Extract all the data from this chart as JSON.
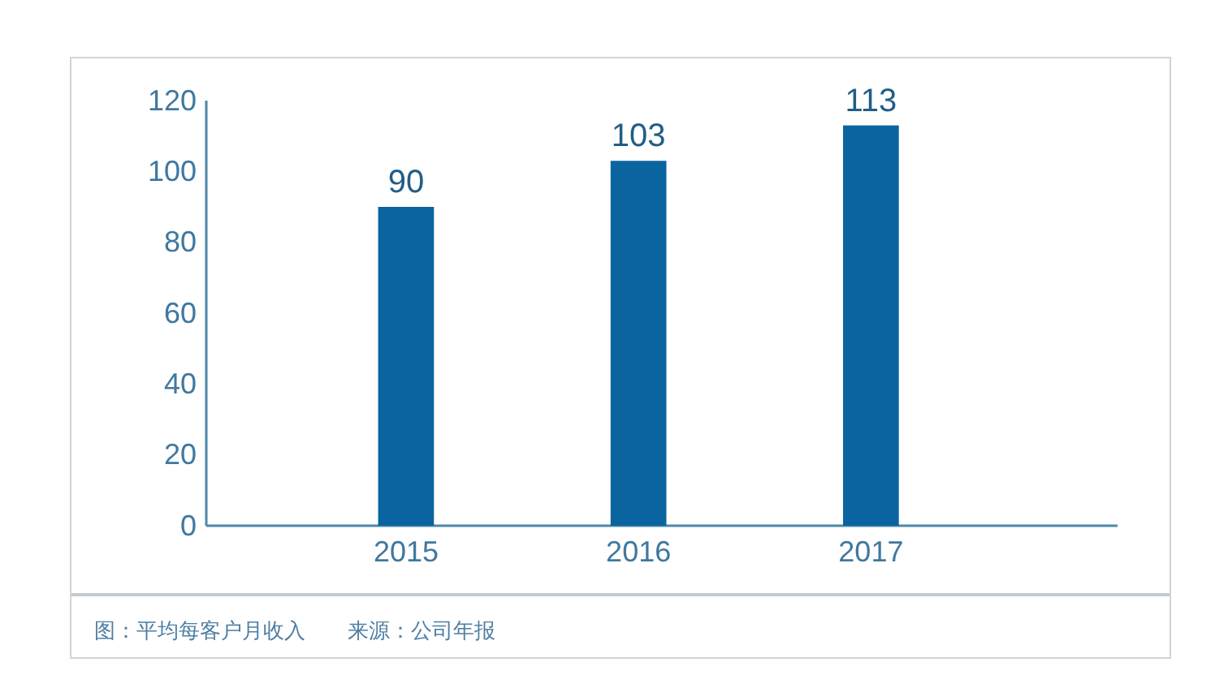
{
  "chart_data": {
    "type": "bar",
    "categories": [
      "2015",
      "2016",
      "2017"
    ],
    "values": [
      90,
      103,
      113
    ],
    "color": "#0a64a0",
    "ylim": [
      0,
      120
    ],
    "yticks": [
      0,
      20,
      40,
      60,
      80,
      100,
      120
    ],
    "data_labels": true,
    "annotations": [
      "图：平均每客户月收入　　来源：公司年报"
    ]
  }
}
